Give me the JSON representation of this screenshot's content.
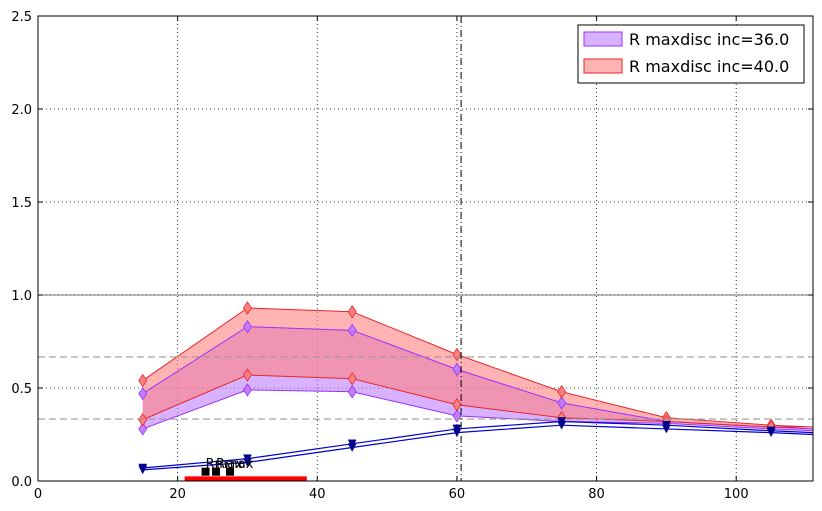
{
  "chart_data": {
    "type": "area",
    "xlim": [
      0,
      111
    ],
    "ylim": [
      0,
      2.5
    ],
    "x_ticks": [
      0,
      20,
      40,
      60,
      80,
      100
    ],
    "y_ticks": [
      0.0,
      0.5,
      1.0,
      1.5,
      2.0,
      2.5
    ],
    "x_tick_labels": [
      "0",
      "20",
      "40",
      "60",
      "80",
      "100"
    ],
    "y_tick_labels": [
      "0.0",
      "0.5",
      "1.0",
      "1.5",
      "2.0",
      "2.5"
    ],
    "grid": true,
    "legend_position": "top-right",
    "bands": [
      {
        "name": "R maxdisc inc=36.0",
        "fill": "#bf7fff",
        "edge": "#9b30ff",
        "x": [
          15,
          30,
          45,
          60,
          75,
          90,
          105,
          111
        ],
        "upper": [
          0.47,
          0.83,
          0.81,
          0.6,
          0.42,
          0.32,
          0.29,
          0.28
        ],
        "lower": [
          0.28,
          0.49,
          0.48,
          0.35,
          0.32,
          0.31,
          0.28,
          0.27
        ]
      },
      {
        "name": "R maxdisc inc=40.0",
        "fill": "#ff8080",
        "edge": "#e8262a",
        "x": [
          15,
          30,
          45,
          60,
          75,
          90,
          105,
          111
        ],
        "upper": [
          0.54,
          0.93,
          0.91,
          0.68,
          0.48,
          0.34,
          0.3,
          0.29
        ],
        "lower": [
          0.33,
          0.57,
          0.55,
          0.41,
          0.34,
          0.32,
          0.29,
          0.29
        ]
      }
    ],
    "blue_lines": [
      {
        "color": "#0000cd",
        "x": [
          15,
          30,
          45,
          60,
          75,
          90,
          105,
          111
        ],
        "y": [
          0.07,
          0.12,
          0.2,
          0.28,
          0.32,
          0.3,
          0.27,
          0.26
        ]
      },
      {
        "color": "#0000cd",
        "x": [
          15,
          30,
          45,
          60,
          75,
          90,
          105,
          111
        ],
        "y": [
          0.06,
          0.1,
          0.18,
          0.26,
          0.3,
          0.28,
          0.26,
          0.25
        ]
      }
    ],
    "hlines_solid": [
      1.0
    ],
    "hlines_dashed": [
      0.667,
      0.333
    ],
    "vline_dashdot": 60.6,
    "red_bar": {
      "x_start": 21,
      "x_end": 38.5,
      "height": 0.025,
      "color": "#ff0000"
    },
    "markers": [
      {
        "x": 24,
        "y": 0.05
      },
      {
        "x": 25.5,
        "y": 0.05
      },
      {
        "x": 27.5,
        "y": 0.05
      }
    ],
    "annotations": [
      {
        "text": "Rmax",
        "x": 24,
        "y": 0.07
      },
      {
        "text": "Rmax",
        "x": 25.5,
        "y": 0.07
      }
    ]
  }
}
